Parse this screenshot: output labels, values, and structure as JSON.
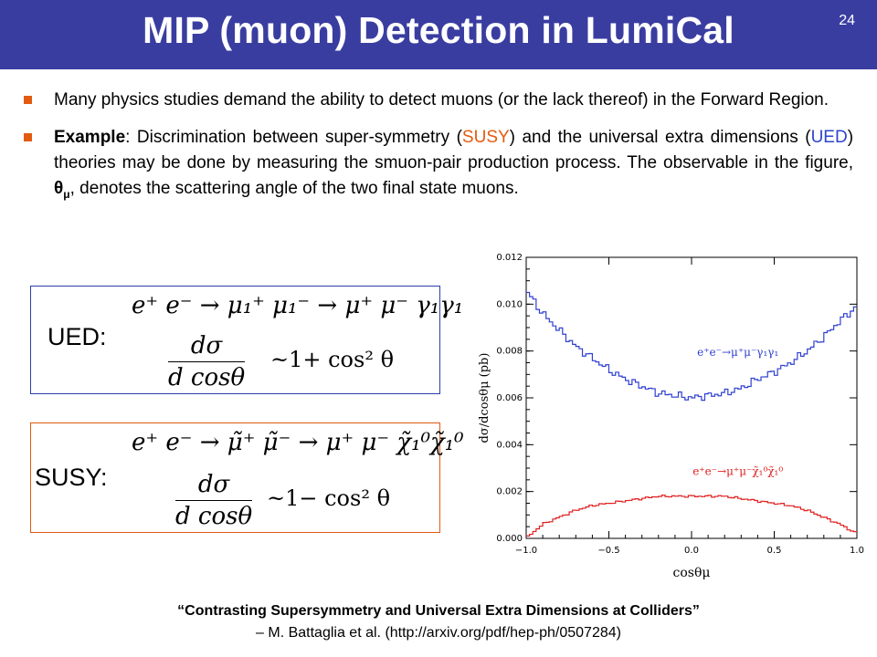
{
  "header": {
    "title": "MIP (muon) Detection in LumiCal",
    "slide_number": "24"
  },
  "bullets": {
    "b1": "Many physics studies demand the ability to detect muons (or the lack thereof) in the Forward Region.",
    "b2_bold": "Example",
    "b2_a": ": Discrimination between super-symmetry (",
    "b2_susy": "SUSY",
    "b2_b": ") and the universal extra dimensions (",
    "b2_ued": "UED",
    "b2_c": ") theories may be done by measuring the smuon-pair production process. The observable in the figure, ",
    "b2_theta": "θ",
    "b2_mu": "μ",
    "b2_d": ", denotes the scattering angle of the two final state muons."
  },
  "equations": {
    "ued_label": "UED:",
    "ued_reaction": "e⁺ e⁻  → μ₁⁺ μ₁⁻  → μ⁺ μ⁻ γ₁γ₁",
    "ued_num": "dσ",
    "ued_den": "d cosθ",
    "ued_rhs": "~1+ cos² θ",
    "susy_label": "SUSY:",
    "susy_reaction": "e⁺ e⁻  → μ̃⁺ μ̃⁻  → μ⁺ μ⁻ χ̃₁⁰χ̃₁⁰",
    "susy_num": "dσ",
    "susy_den": "d cosθ",
    "susy_rhs": "~1− cos² θ"
  },
  "citation": {
    "line1": "“Contrasting Supersymmetry and Universal Extra Dimensions at Colliders”",
    "line2": "– M. Battaglia et al.  (http://arxiv.org/pdf/hep-ph/0507284)"
  },
  "colors": {
    "header_bg": "#3a3da0",
    "bullet_mark": "#e35b10",
    "ued_series": "#3040d0",
    "susy_series": "#e02020"
  },
  "chart_data": {
    "type": "line",
    "xlabel": "cosθμ",
    "ylabel": "dσ/dcosθμ  (pb)",
    "xlim": [
      -1.0,
      1.0
    ],
    "ylim": [
      0.0,
      0.012
    ],
    "x_ticks": [
      "−1.0",
      "−0.5",
      "0.0",
      "0.5",
      "1.0"
    ],
    "y_ticks": [
      "0.000",
      "0.002",
      "0.004",
      "0.006",
      "0.008",
      "0.010",
      "0.012"
    ],
    "series": [
      {
        "name": "e⁺e⁻→μ⁺μ⁻γ₁γ₁",
        "color": "#3040d0",
        "x": [
          -1.0,
          -0.9,
          -0.8,
          -0.7,
          -0.6,
          -0.5,
          -0.4,
          -0.3,
          -0.2,
          -0.1,
          0.0,
          0.1,
          0.2,
          0.3,
          0.4,
          0.5,
          0.6,
          0.7,
          0.8,
          0.9,
          1.0
        ],
        "y": [
          0.0106,
          0.0096,
          0.0089,
          0.0082,
          0.0077,
          0.0072,
          0.0068,
          0.0065,
          0.0062,
          0.0061,
          0.006,
          0.0061,
          0.0062,
          0.0064,
          0.0068,
          0.0071,
          0.0075,
          0.008,
          0.0086,
          0.0093,
          0.0099
        ]
      },
      {
        "name": "e⁺e⁻→μ⁺μ⁻χ̃₁⁰χ̃₁⁰",
        "color": "#e02020",
        "x": [
          -1.0,
          -0.9,
          -0.8,
          -0.7,
          -0.6,
          -0.5,
          -0.4,
          -0.3,
          -0.2,
          -0.1,
          0.0,
          0.1,
          0.2,
          0.3,
          0.4,
          0.5,
          0.6,
          0.7,
          0.8,
          0.9,
          1.0
        ],
        "y": [
          0.0,
          0.0006,
          0.0009,
          0.0012,
          0.0014,
          0.0015,
          0.0016,
          0.0017,
          0.0018,
          0.0018,
          0.0018,
          0.0018,
          0.0018,
          0.0017,
          0.0016,
          0.0015,
          0.0014,
          0.0012,
          0.0009,
          0.0006,
          0.0002
        ]
      }
    ]
  }
}
